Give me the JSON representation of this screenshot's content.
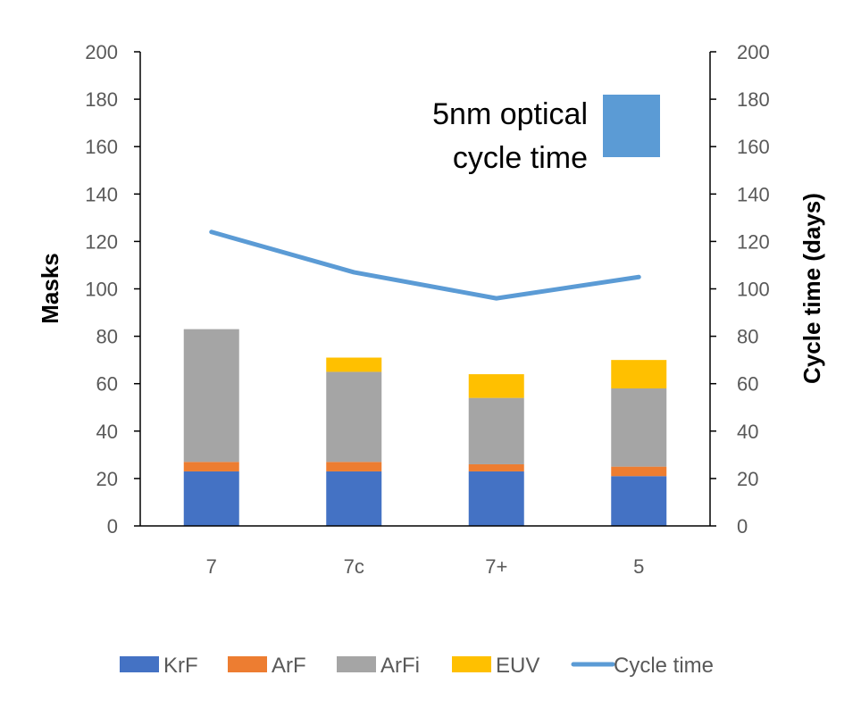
{
  "chart_data": {
    "type": "bar",
    "stacked": true,
    "categories": [
      "7",
      "7c",
      "7+",
      "5"
    ],
    "series": [
      {
        "name": "KrF",
        "values": [
          23,
          23,
          23,
          21
        ],
        "color": "#4472C4",
        "axis": "left"
      },
      {
        "name": "ArF",
        "values": [
          4,
          4,
          3,
          4
        ],
        "color": "#ED7D31",
        "axis": "left"
      },
      {
        "name": "ArFi",
        "values": [
          56,
          38,
          28,
          33
        ],
        "color": "#A5A5A5",
        "axis": "left"
      },
      {
        "name": "EUV",
        "values": [
          0,
          6,
          10,
          12
        ],
        "color": "#FFC000",
        "axis": "left"
      }
    ],
    "line_series": [
      {
        "name": "Cycle time",
        "type": "line",
        "values": [
          124,
          107,
          96,
          105
        ],
        "color": "#5B9BD5",
        "axis": "right"
      }
    ],
    "ylabel": "Masks",
    "y2label": "Cycle time (days)",
    "ylim": [
      0,
      200
    ],
    "y2lim": [
      0,
      200
    ],
    "yticks": [
      0,
      20,
      40,
      60,
      80,
      100,
      120,
      140,
      160,
      180,
      200
    ],
    "annotation": {
      "lines": [
        "5nm optical",
        "cycle time"
      ],
      "swatch_color": "#5B9BD5"
    },
    "grid": false,
    "legend_position": "bottom"
  }
}
